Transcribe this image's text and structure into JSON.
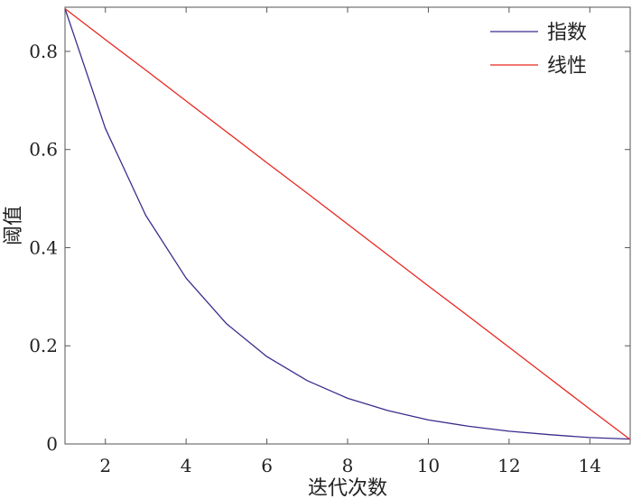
{
  "chart_data": {
    "type": "line",
    "title": "",
    "xlabel": "迭代次数",
    "ylabel": "阈值",
    "xlim": [
      1,
      15
    ],
    "ylim": [
      0,
      0.89
    ],
    "xticks": [
      2,
      4,
      6,
      8,
      10,
      12,
      14
    ],
    "yticks": [
      0,
      0.2,
      0.4,
      0.6,
      0.8
    ],
    "xtick_labels": [
      "2",
      "4",
      "6",
      "8",
      "10",
      "12",
      "14"
    ],
    "ytick_labels": [
      "0",
      "0.2",
      "0.4",
      "0.6",
      "0.8"
    ],
    "grid": false,
    "legend_position": "top-right",
    "x": [
      1,
      2,
      3,
      4,
      5,
      6,
      7,
      8,
      9,
      10,
      11,
      12,
      13,
      14,
      15
    ],
    "series": [
      {
        "name": "指数",
        "color": "#3d2b8c",
        "values": [
          0.887,
          0.643,
          0.466,
          0.338,
          0.245,
          0.178,
          0.129,
          0.093,
          0.068,
          0.049,
          0.036,
          0.026,
          0.019,
          0.013,
          0.01
        ]
      },
      {
        "name": "线性",
        "color": "#e8271f",
        "values": [
          0.887,
          0.824,
          0.762,
          0.699,
          0.636,
          0.573,
          0.511,
          0.448,
          0.385,
          0.322,
          0.26,
          0.197,
          0.134,
          0.071,
          0.009
        ]
      }
    ]
  }
}
